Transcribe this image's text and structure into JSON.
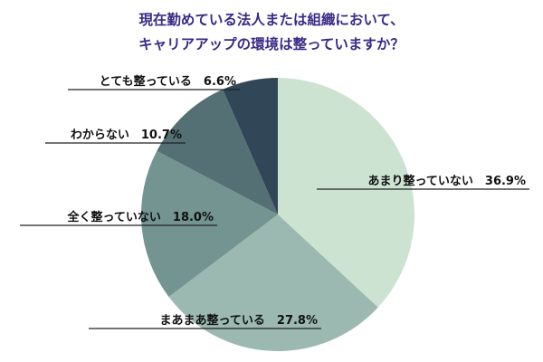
{
  "chart_data": {
    "type": "pie",
    "title_lines": [
      "現在勤めている法人または組織において、",
      "キャリアアップの環境は整っていますか？"
    ],
    "categories": [
      "あまり整っていない",
      "まあまあ整っている",
      "全く整っていない",
      "わからない",
      "とても整っている"
    ],
    "values": [
      36.9,
      27.8,
      18.0,
      10.7,
      6.6
    ],
    "labels": [
      "あまり整っていない　36.9%",
      "まあまあ整っている　27.8%",
      "全く整っていない　18.0%",
      "わからない　10.7%",
      "とても整っている　6.6%"
    ],
    "colors": [
      "#cde3d2",
      "#9bb9b0",
      "#739491",
      "#547074",
      "#314656"
    ],
    "start_angle": "12 o'clock",
    "direction": "clockwise",
    "legend": "none"
  }
}
